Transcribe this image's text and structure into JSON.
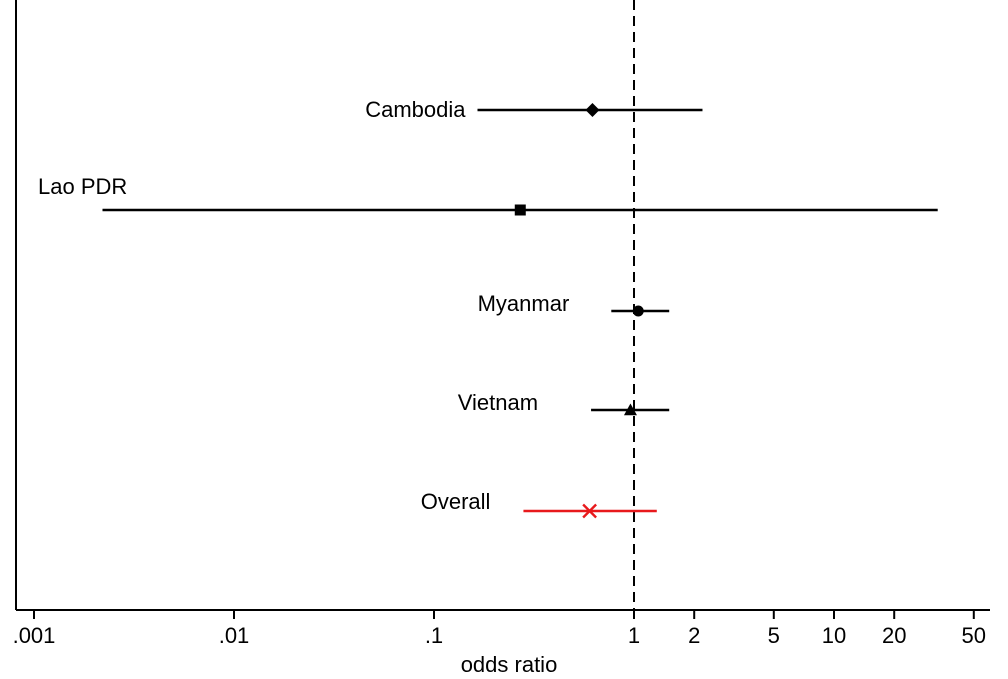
{
  "chart_data": {
    "type": "forest",
    "title": "",
    "xlabel": "odds ratio",
    "ylabel": "",
    "x_scale": "log",
    "xlim": [
      0.0008,
      60
    ],
    "x_ticks": [
      {
        "value": 0.001,
        "label": ".001"
      },
      {
        "value": 0.01,
        "label": ".01"
      },
      {
        "value": 0.1,
        "label": ".1"
      },
      {
        "value": 1,
        "label": "1"
      },
      {
        "value": 2,
        "label": "2"
      },
      {
        "value": 5,
        "label": "5"
      },
      {
        "value": 10,
        "label": "10"
      },
      {
        "value": 20,
        "label": "20"
      },
      {
        "value": 50,
        "label": "50"
      }
    ],
    "reference_line": {
      "value": 1,
      "style": "dashed"
    },
    "rows": [
      {
        "label": "Cambodia",
        "estimate": 0.62,
        "lower": 0.165,
        "upper": 2.2,
        "marker": "diamond",
        "color": "#000000"
      },
      {
        "label": "Lao PDR",
        "estimate": 0.27,
        "lower": 0.0022,
        "upper": 33,
        "marker": "square",
        "color": "#000000"
      },
      {
        "label": "Myanmar",
        "estimate": 1.05,
        "lower": 0.77,
        "upper": 1.5,
        "marker": "circle",
        "color": "#000000"
      },
      {
        "label": "Vietnam",
        "estimate": 0.96,
        "lower": 0.61,
        "upper": 1.5,
        "marker": "triangle",
        "color": "#000000"
      },
      {
        "label": "Overall",
        "estimate": 0.6,
        "lower": 0.28,
        "upper": 1.3,
        "marker": "x",
        "color": "#e8191c"
      }
    ],
    "grid": false
  }
}
